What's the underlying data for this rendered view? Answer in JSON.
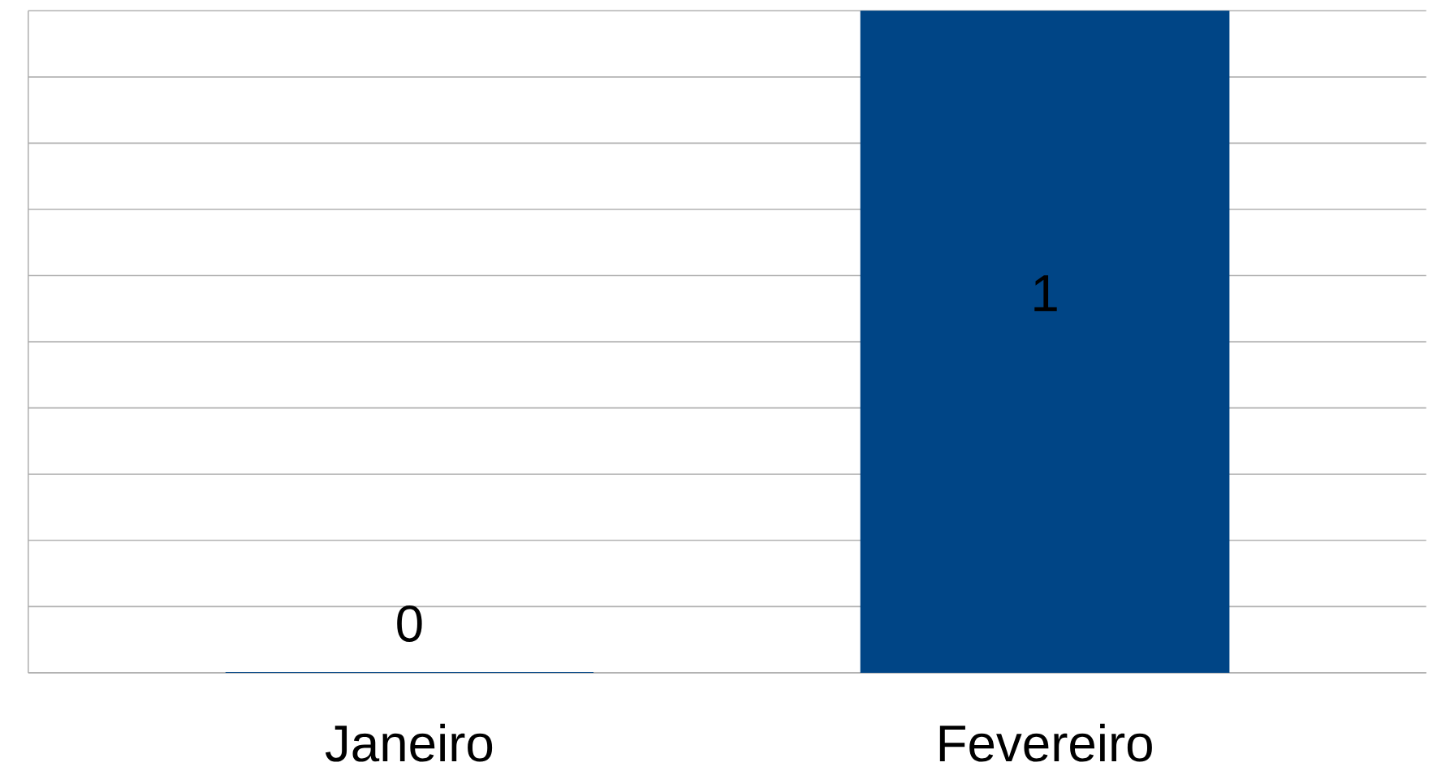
{
  "chart_data": {
    "type": "bar",
    "categories": [
      "Janeiro",
      "Fevereiro"
    ],
    "values": [
      0,
      1
    ],
    "color": "#004586",
    "data_labels": true,
    "ylim": [
      0,
      1
    ],
    "yticks": [
      {
        "value": 0,
        "label": null
      },
      {
        "value": 0.1,
        "label": null
      },
      {
        "value": 0.2,
        "label": null
      },
      {
        "value": 0.3,
        "label": null
      },
      {
        "value": 0.4,
        "label": null
      },
      {
        "value": 0.5,
        "label": null
      },
      {
        "value": 0.6,
        "label": null
      },
      {
        "value": 0.7,
        "label": null
      },
      {
        "value": 0.8,
        "label": null
      },
      {
        "value": 0.9,
        "label": null
      },
      {
        "value": 1,
        "label": null
      }
    ],
    "tick_labels": "x",
    "grid": "y"
  }
}
